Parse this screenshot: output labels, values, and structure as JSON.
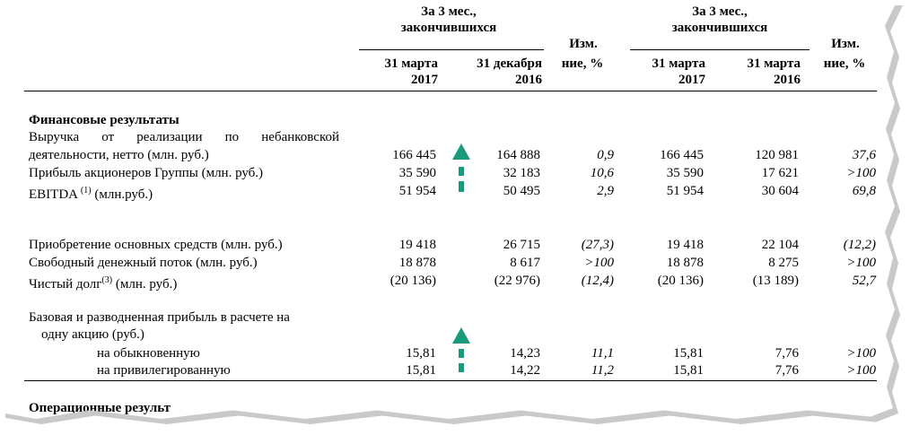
{
  "header": {
    "group1_title_line1": "За 3 мес.,",
    "group1_title_line2": "закончившихся",
    "group2_title_line1": "За 3 мес.,",
    "group2_title_line2": "закончившихся",
    "change1_line1": "Изм.",
    "change1_line2": "ние, %",
    "change2_line1": "Изм.",
    "change2_line2": "ние, %",
    "col1_line1": "31 марта",
    "col1_line2": "2017",
    "col2_line1": "31 декабря",
    "col2_line2": "2016",
    "col3_line1": "31 марта",
    "col3_line2": "2017",
    "col4_line1": "31 марта",
    "col4_line2": "2016"
  },
  "section_financial": "Финансовые результаты",
  "rows": [
    {
      "label_line1": "Выручка от реализации по небанковской",
      "label_line2": "деятельности, нетто (млн. руб.)",
      "v1": "166 445",
      "v2": "164 888",
      "ch1": "0,9",
      "v3": "166 445",
      "v4": "120 981",
      "ch2": "37,6"
    },
    {
      "label": "Прибыль акционеров Группы (млн. руб.)",
      "v1": "35 590",
      "v2": "32 183",
      "ch1": "10,6",
      "v3": "35 590",
      "v4": "17 621",
      "ch2": ">100"
    },
    {
      "label": "EBITDA",
      "sup": "(1)",
      "label_rest": " (млн.руб.)",
      "v1": "51 954",
      "v2": "50 495",
      "ch1": "2,9",
      "v3": "51 954",
      "v4": "30 604",
      "ch2": "69,8"
    },
    {
      "label": "Приобретение основных средств (млн. руб.)",
      "v1": "19 418",
      "v2": "26 715",
      "ch1": "(27,3)",
      "v3": "19 418",
      "v4": "22 104",
      "ch2": "(12,2)"
    },
    {
      "label": "Свободный денежный поток (млн. руб.)",
      "v1": "18 878",
      "v2": "8 617",
      "ch1": ">100",
      "v3": "18 878",
      "v4": "8 275",
      "ch2": ">100"
    },
    {
      "label": "Чистый долг",
      "sup": "(3)",
      "label_rest": " (млн. руб.)",
      "v1": "(20 136)",
      "v2": "(22 976)",
      "ch1": "(12,4)",
      "v3": "(20 136)",
      "v4": "(13 189)",
      "ch2": "52,7"
    }
  ],
  "eps": {
    "label_line1": "Базовая и разводненная прибыль в расчете на",
    "label_line2": "одну акцию (руб.)",
    "ordinary": {
      "label": "на обыкновенную",
      "v1": "15,81",
      "v2": "14,23",
      "ch1": "11,1",
      "v3": "15,81",
      "v4": "7,76",
      "ch2": ">100"
    },
    "preferred": {
      "label": "на привилегированную",
      "v1": "15,81",
      "v2": "14,22",
      "ch1": "11,2",
      "v3": "15,81",
      "v4": "7,76",
      "ch2": ">100"
    }
  },
  "next_section_partial": "Операционные результ",
  "colors": {
    "arrow": "#1a9a7c"
  },
  "icons": [
    "arrow-up-icon",
    "arrow-up-icon"
  ]
}
